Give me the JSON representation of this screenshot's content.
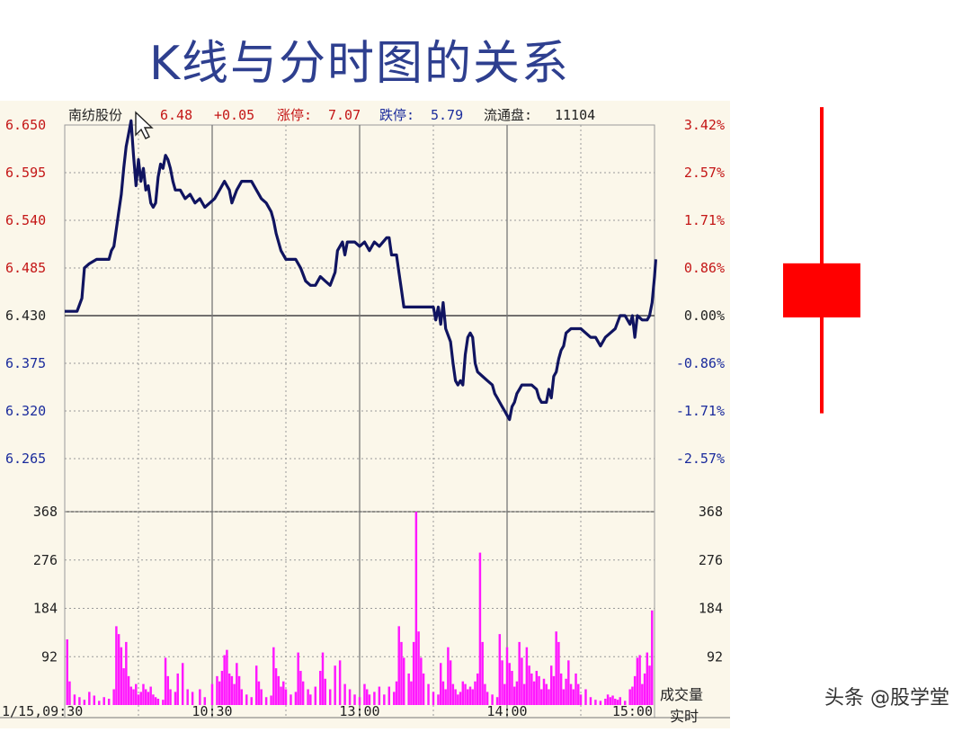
{
  "slide": {
    "title": "K线与分时图的关系",
    "watermark": "头条 @股学堂"
  },
  "chart_data": [
    {
      "type": "line",
      "header": {
        "name": "南纺股份",
        "price": "6.48",
        "change": "+0.05",
        "limit_up_label": "涨停:",
        "limit_up": "7.07",
        "limit_down_label": "跌停:",
        "limit_down": "5.79",
        "float_label": "流通盘:",
        "float_value": "11104"
      },
      "price_axis": {
        "ylim": [
          6.265,
          6.65
        ],
        "prev_close": 6.43,
        "ticks": [
          {
            "value": 6.65,
            "label": "6.650",
            "pct": "3.42%"
          },
          {
            "value": 6.595,
            "label": "6.595",
            "pct": "2.57%"
          },
          {
            "value": 6.54,
            "label": "6.540",
            "pct": "1.71%"
          },
          {
            "value": 6.485,
            "label": "6.485",
            "pct": "0.86%"
          },
          {
            "value": 6.43,
            "label": "6.430",
            "pct": "0.00%"
          },
          {
            "value": 6.375,
            "label": "6.375",
            "pct": "-0.86%"
          },
          {
            "value": 6.32,
            "label": "6.320",
            "pct": "-1.71%"
          },
          {
            "value": 6.265,
            "label": "6.265",
            "pct": "-2.57%"
          }
        ]
      },
      "x": {
        "range_minutes": [
          0,
          240
        ],
        "ticks": [
          {
            "t": 0,
            "label": "1/15,09:30"
          },
          {
            "t": 60,
            "label": "10:30"
          },
          {
            "t": 120,
            "label": "13:00"
          },
          {
            "t": 180,
            "label": "14:00"
          },
          {
            "t": 240,
            "label": "15:00"
          }
        ]
      },
      "price_line": [
        [
          0,
          6.435
        ],
        [
          5,
          6.435
        ],
        [
          7,
          6.45
        ],
        [
          8,
          6.485
        ],
        [
          10,
          6.49
        ],
        [
          13,
          6.495
        ],
        [
          18,
          6.495
        ],
        [
          19,
          6.505
        ],
        [
          20,
          6.51
        ],
        [
          21,
          6.53
        ],
        [
          22,
          6.55
        ],
        [
          23,
          6.57
        ],
        [
          24,
          6.6
        ],
        [
          25,
          6.625
        ],
        [
          26,
          6.64
        ],
        [
          27,
          6.655
        ],
        [
          28,
          6.615
        ],
        [
          29,
          6.58
        ],
        [
          30,
          6.61
        ],
        [
          31,
          6.585
        ],
        [
          32,
          6.6
        ],
        [
          33,
          6.575
        ],
        [
          34,
          6.58
        ],
        [
          35,
          6.56
        ],
        [
          36,
          6.555
        ],
        [
          37,
          6.56
        ],
        [
          38,
          6.59
        ],
        [
          39,
          6.605
        ],
        [
          40,
          6.6
        ],
        [
          41,
          6.615
        ],
        [
          42,
          6.61
        ],
        [
          43,
          6.6
        ],
        [
          44,
          6.585
        ],
        [
          45,
          6.575
        ],
        [
          47,
          6.575
        ],
        [
          49,
          6.565
        ],
        [
          51,
          6.57
        ],
        [
          53,
          6.56
        ],
        [
          55,
          6.565
        ],
        [
          57,
          6.555
        ],
        [
          59,
          6.56
        ],
        [
          61,
          6.565
        ],
        [
          63,
          6.575
        ],
        [
          65,
          6.585
        ],
        [
          67,
          6.575
        ],
        [
          68,
          6.56
        ],
        [
          70,
          6.575
        ],
        [
          72,
          6.585
        ],
        [
          76,
          6.585
        ],
        [
          78,
          6.575
        ],
        [
          80,
          6.565
        ],
        [
          82,
          6.56
        ],
        [
          84,
          6.55
        ],
        [
          85,
          6.54
        ],
        [
          86,
          6.525
        ],
        [
          88,
          6.505
        ],
        [
          90,
          6.495
        ],
        [
          94,
          6.495
        ],
        [
          96,
          6.485
        ],
        [
          98,
          6.47
        ],
        [
          100,
          6.465
        ],
        [
          102,
          6.465
        ],
        [
          104,
          6.475
        ],
        [
          106,
          6.47
        ],
        [
          108,
          6.465
        ],
        [
          110,
          6.48
        ],
        [
          111,
          6.505
        ],
        [
          113,
          6.515
        ],
        [
          114,
          6.5
        ],
        [
          115,
          6.515
        ],
        [
          118,
          6.515
        ],
        [
          120,
          6.51
        ],
        [
          122,
          6.515
        ],
        [
          124,
          6.505
        ],
        [
          126,
          6.515
        ],
        [
          128,
          6.51
        ],
        [
          131,
          6.52
        ],
        [
          132,
          6.52
        ],
        [
          133,
          6.5
        ],
        [
          135,
          6.5
        ],
        [
          136,
          6.48
        ],
        [
          137,
          6.46
        ],
        [
          138,
          6.44
        ],
        [
          139,
          6.44
        ],
        [
          141,
          6.44
        ],
        [
          143,
          6.44
        ],
        [
          150,
          6.44
        ],
        [
          151,
          6.425
        ],
        [
          152,
          6.44
        ],
        [
          153,
          6.42
        ],
        [
          154,
          6.445
        ],
        [
          155,
          6.415
        ],
        [
          157,
          6.4
        ],
        [
          158,
          6.375
        ],
        [
          159,
          6.355
        ],
        [
          160,
          6.35
        ],
        [
          161,
          6.355
        ],
        [
          162,
          6.35
        ],
        [
          163,
          6.385
        ],
        [
          164,
          6.405
        ],
        [
          165,
          6.41
        ],
        [
          166,
          6.405
        ],
        [
          167,
          6.375
        ],
        [
          168,
          6.365
        ],
        [
          170,
          6.36
        ],
        [
          172,
          6.355
        ],
        [
          174,
          6.35
        ],
        [
          175,
          6.34
        ],
        [
          176,
          6.335
        ],
        [
          177,
          6.33
        ],
        [
          178,
          6.325
        ],
        [
          179,
          6.32
        ],
        [
          180,
          6.315
        ],
        [
          181,
          6.31
        ],
        [
          182,
          6.325
        ],
        [
          183,
          6.33
        ],
        [
          184,
          6.34
        ],
        [
          185,
          6.345
        ],
        [
          186,
          6.35
        ],
        [
          188,
          6.35
        ],
        [
          190,
          6.35
        ],
        [
          192,
          6.345
        ],
        [
          193,
          6.335
        ],
        [
          194,
          6.33
        ],
        [
          196,
          6.33
        ],
        [
          197,
          6.345
        ],
        [
          198,
          6.335
        ],
        [
          199,
          6.36
        ],
        [
          200,
          6.365
        ],
        [
          201,
          6.38
        ],
        [
          202,
          6.39
        ],
        [
          203,
          6.395
        ],
        [
          204,
          6.41
        ],
        [
          206,
          6.415
        ],
        [
          210,
          6.415
        ],
        [
          212,
          6.41
        ],
        [
          214,
          6.405
        ],
        [
          216,
          6.405
        ],
        [
          218,
          6.395
        ],
        [
          220,
          6.405
        ],
        [
          222,
          6.41
        ],
        [
          224,
          6.415
        ],
        [
          226,
          6.43
        ],
        [
          228,
          6.43
        ],
        [
          230,
          6.42
        ],
        [
          231,
          6.43
        ],
        [
          232,
          6.405
        ],
        [
          233,
          6.43
        ],
        [
          235,
          6.425
        ],
        [
          237,
          6.425
        ],
        [
          238,
          6.43
        ],
        [
          239,
          6.445
        ],
        [
          240,
          6.475
        ],
        [
          240.5,
          6.495
        ]
      ],
      "volume_axis": {
        "ylim": [
          0,
          368
        ],
        "ticks": [
          368,
          276,
          184,
          92
        ],
        "label_left_bottom": "成交量",
        "label_right_bottom": "实时"
      },
      "volume": [
        [
          1,
          125
        ],
        [
          2,
          45
        ],
        [
          4,
          20
        ],
        [
          6,
          15
        ],
        [
          8,
          10
        ],
        [
          10,
          25
        ],
        [
          12,
          18
        ],
        [
          14,
          8
        ],
        [
          16,
          15
        ],
        [
          18,
          12
        ],
        [
          20,
          30
        ],
        [
          21,
          150
        ],
        [
          22,
          135
        ],
        [
          23,
          110
        ],
        [
          24,
          70
        ],
        [
          25,
          120
        ],
        [
          26,
          55
        ],
        [
          27,
          35
        ],
        [
          28,
          30
        ],
        [
          29,
          40
        ],
        [
          30,
          20
        ],
        [
          31,
          25
        ],
        [
          32,
          40
        ],
        [
          33,
          30
        ],
        [
          34,
          25
        ],
        [
          35,
          35
        ],
        [
          36,
          20
        ],
        [
          37,
          15
        ],
        [
          38,
          12
        ],
        [
          40,
          10
        ],
        [
          41,
          90
        ],
        [
          42,
          55
        ],
        [
          43,
          30
        ],
        [
          45,
          25
        ],
        [
          46,
          60
        ],
        [
          48,
          80
        ],
        [
          50,
          30
        ],
        [
          52,
          25
        ],
        [
          55,
          30
        ],
        [
          57,
          15
        ],
        [
          60,
          40
        ],
        [
          62,
          55
        ],
        [
          63,
          45
        ],
        [
          64,
          65
        ],
        [
          65,
          95
        ],
        [
          66,
          105
        ],
        [
          67,
          60
        ],
        [
          68,
          55
        ],
        [
          69,
          40
        ],
        [
          70,
          80
        ],
        [
          71,
          55
        ],
        [
          72,
          30
        ],
        [
          74,
          20
        ],
        [
          76,
          15
        ],
        [
          78,
          75
        ],
        [
          79,
          45
        ],
        [
          80,
          30
        ],
        [
          82,
          15
        ],
        [
          84,
          18
        ],
        [
          85,
          110
        ],
        [
          86,
          70
        ],
        [
          87,
          55
        ],
        [
          88,
          35
        ],
        [
          89,
          45
        ],
        [
          90,
          30
        ],
        [
          92,
          20
        ],
        [
          94,
          25
        ],
        [
          95,
          100
        ],
        [
          96,
          65
        ],
        [
          97,
          45
        ],
        [
          99,
          30
        ],
        [
          100,
          20
        ],
        [
          102,
          35
        ],
        [
          104,
          65
        ],
        [
          105,
          100
        ],
        [
          106,
          50
        ],
        [
          108,
          30
        ],
        [
          110,
          75
        ],
        [
          112,
          85
        ],
        [
          114,
          40
        ],
        [
          116,
          30
        ],
        [
          118,
          20
        ],
        [
          120,
          15
        ],
        [
          122,
          40
        ],
        [
          123,
          30
        ],
        [
          124,
          20
        ],
        [
          126,
          25
        ],
        [
          128,
          35
        ],
        [
          130,
          20
        ],
        [
          132,
          35
        ],
        [
          134,
          25
        ],
        [
          135,
          45
        ],
        [
          136,
          150
        ],
        [
          137,
          120
        ],
        [
          138,
          90
        ],
        [
          140,
          60
        ],
        [
          141,
          45
        ],
        [
          142,
          120
        ],
        [
          143,
          368
        ],
        [
          144,
          140
        ],
        [
          145,
          90
        ],
        [
          146,
          60
        ],
        [
          148,
          40
        ],
        [
          150,
          25
        ],
        [
          152,
          20
        ],
        [
          153,
          80
        ],
        [
          154,
          45
        ],
        [
          155,
          30
        ],
        [
          156,
          110
        ],
        [
          157,
          85
        ],
        [
          158,
          40
        ],
        [
          159,
          30
        ],
        [
          160,
          20
        ],
        [
          161,
          25
        ],
        [
          162,
          45
        ],
        [
          163,
          40
        ],
        [
          164,
          30
        ],
        [
          165,
          35
        ],
        [
          166,
          30
        ],
        [
          167,
          45
        ],
        [
          168,
          60
        ],
        [
          169,
          290
        ],
        [
          170,
          120
        ],
        [
          171,
          40
        ],
        [
          172,
          25
        ],
        [
          174,
          20
        ],
        [
          176,
          15
        ],
        [
          177,
          135
        ],
        [
          178,
          85
        ],
        [
          179,
          40
        ],
        [
          180,
          110
        ],
        [
          181,
          80
        ],
        [
          182,
          65
        ],
        [
          183,
          35
        ],
        [
          184,
          45
        ],
        [
          185,
          120
        ],
        [
          186,
          90
        ],
        [
          187,
          40
        ],
        [
          188,
          110
        ],
        [
          189,
          75
        ],
        [
          190,
          60
        ],
        [
          191,
          45
        ],
        [
          192,
          65
        ],
        [
          193,
          55
        ],
        [
          194,
          30
        ],
        [
          195,
          50
        ],
        [
          196,
          40
        ],
        [
          197,
          30
        ],
        [
          198,
          75
        ],
        [
          199,
          55
        ],
        [
          200,
          140
        ],
        [
          201,
          120
        ],
        [
          202,
          60
        ],
        [
          203,
          30
        ],
        [
          204,
          50
        ],
        [
          205,
          85
        ],
        [
          206,
          40
        ],
        [
          207,
          30
        ],
        [
          208,
          60
        ],
        [
          209,
          40
        ],
        [
          210,
          20
        ],
        [
          212,
          30
        ],
        [
          214,
          15
        ],
        [
          216,
          10
        ],
        [
          218,
          8
        ],
        [
          220,
          12
        ],
        [
          221,
          20
        ],
        [
          222,
          15
        ],
        [
          223,
          18
        ],
        [
          224,
          12
        ],
        [
          225,
          10
        ],
        [
          226,
          15
        ],
        [
          228,
          8
        ],
        [
          230,
          30
        ],
        [
          231,
          35
        ],
        [
          232,
          55
        ],
        [
          233,
          90
        ],
        [
          234,
          95
        ],
        [
          235,
          40
        ],
        [
          236,
          60
        ],
        [
          237,
          100
        ],
        [
          238,
          75
        ],
        [
          239,
          180
        ],
        [
          240,
          160
        ],
        [
          241,
          100
        ],
        [
          242,
          90
        ],
        [
          243,
          120
        ],
        [
          244,
          110
        ],
        [
          245,
          120
        ],
        [
          246,
          115
        ],
        [
          247,
          120
        ]
      ],
      "colors": {
        "price_line": "#101460",
        "volume_bar": "#ff18ff",
        "up_label": "#c41616",
        "down_label": "#1a2b9c",
        "grid": "#9a9a9a",
        "panel_bg": "#fbf7ea"
      }
    },
    {
      "type": "candlestick",
      "ylim": [
        6.265,
        6.65
      ],
      "candle": {
        "open": 6.43,
        "close": 6.48,
        "high": 6.655,
        "low": 6.31
      },
      "color": "#ff0000"
    }
  ]
}
